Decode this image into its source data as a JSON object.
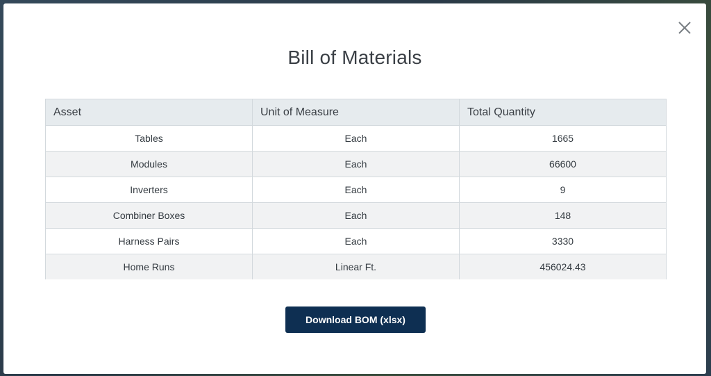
{
  "modal": {
    "title": "Bill of Materials",
    "close_icon": "close-icon"
  },
  "table": {
    "headers": [
      "Asset",
      "Unit of Measure",
      "Total Quantity"
    ],
    "rows": [
      [
        "Tables",
        "Each",
        "1665"
      ],
      [
        "Modules",
        "Each",
        "66600"
      ],
      [
        "Inverters",
        "Each",
        "9"
      ],
      [
        "Combiner Boxes",
        "Each",
        "148"
      ],
      [
        "Harness Pairs",
        "Each",
        "3330"
      ],
      [
        "Home Runs",
        "Linear Ft.",
        "456024.43"
      ]
    ]
  },
  "actions": {
    "download_label": "Download BOM (xlsx)"
  },
  "colors": {
    "button_bg": "#0e2f52",
    "header_bg": "#e6ebee",
    "row_alt_bg": "#f1f2f3"
  }
}
